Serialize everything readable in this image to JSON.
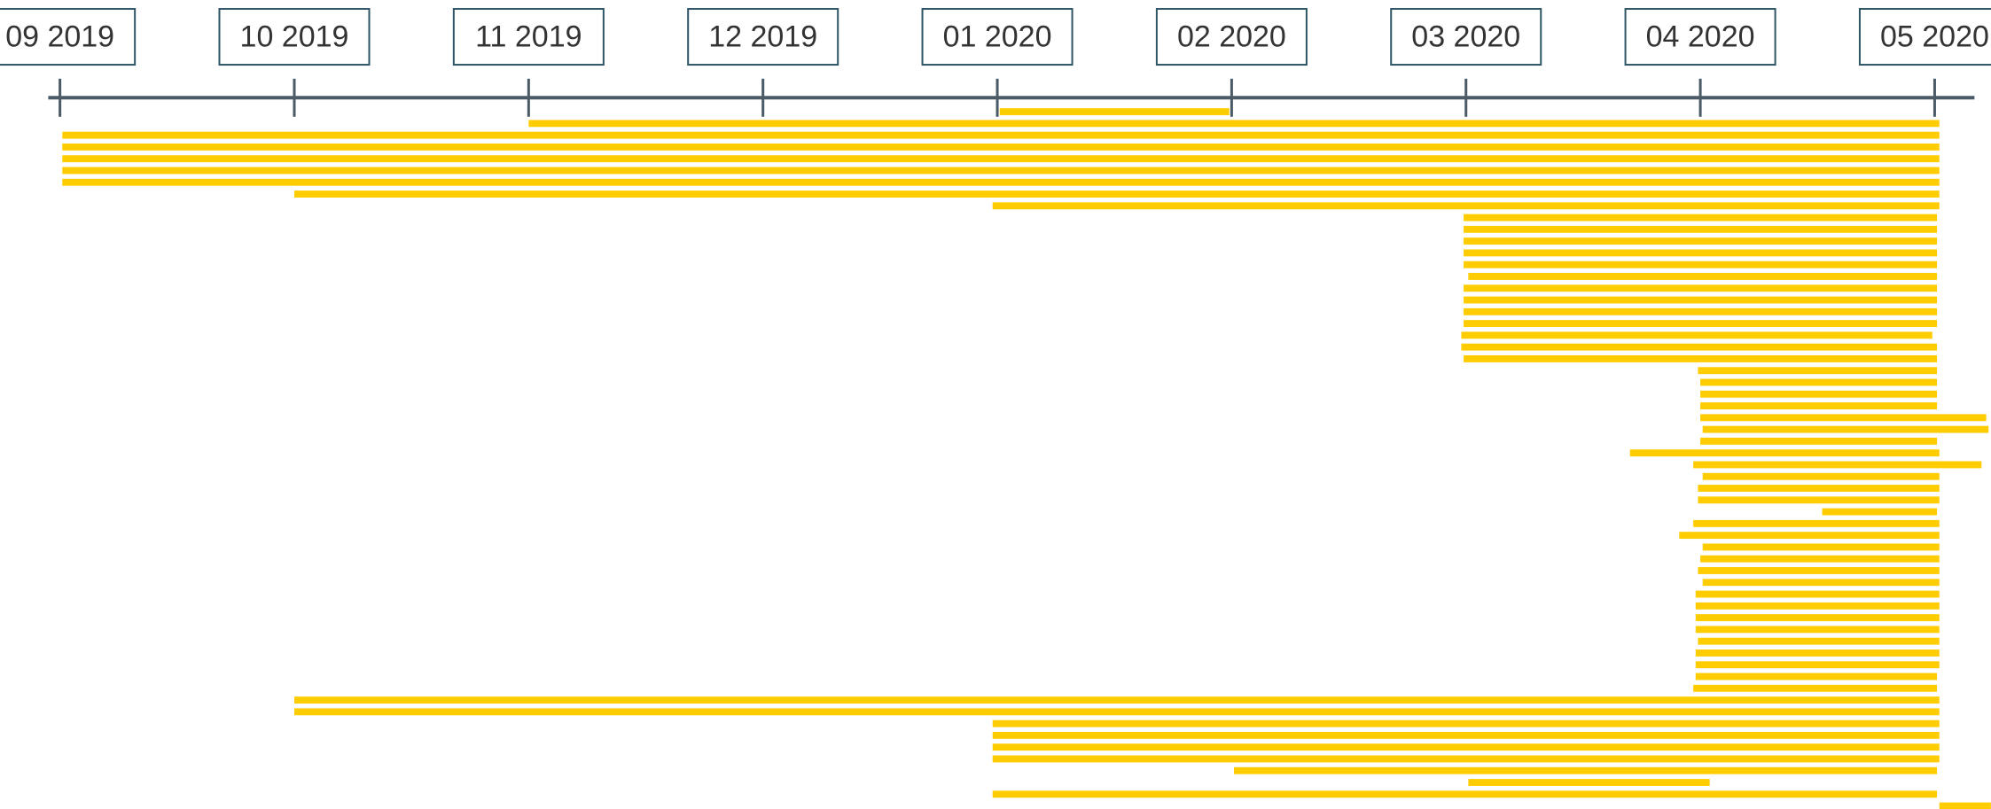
{
  "chart_data": {
    "type": "timeline",
    "color": "#ffcc00",
    "axis_color": "#4a5a66",
    "label_border": "#2e5566",
    "xlim": [
      -0.05,
      8.17
    ],
    "xticks": [
      {
        "value": 0,
        "label": "09 2019"
      },
      {
        "value": 1,
        "label": "10 2019"
      },
      {
        "value": 2,
        "label": "11 2019"
      },
      {
        "value": 3,
        "label": "12 2019"
      },
      {
        "value": 4,
        "label": "01 2020"
      },
      {
        "value": 5,
        "label": "02 2020"
      },
      {
        "value": 6,
        "label": "03 2020"
      },
      {
        "value": 7,
        "label": "04 2020"
      },
      {
        "value": 8,
        "label": "05 2020"
      }
    ],
    "starts": [
      4.01,
      2.0,
      0.01,
      0.01,
      0.01,
      0.01,
      0.01,
      1.0,
      3.98,
      5.99,
      5.99,
      5.99,
      5.99,
      5.99,
      6.01,
      5.99,
      5.99,
      5.99,
      5.99,
      5.98,
      5.98,
      5.99,
      6.99,
      7.0,
      7.0,
      7.0,
      7.0,
      7.01,
      7.0,
      6.7,
      6.97,
      7.01,
      6.99,
      6.99,
      7.52,
      6.97,
      6.91,
      7.01,
      7.0,
      6.99,
      7.01,
      6.98,
      6.98,
      6.98,
      6.98,
      6.99,
      6.98,
      6.98,
      6.98,
      6.97,
      1.0,
      1.0,
      3.98,
      3.98,
      3.98,
      3.98,
      5.01,
      6.01,
      3.98,
      8.02
    ],
    "ends": [
      4.99,
      8.02,
      8.02,
      8.02,
      8.02,
      8.02,
      8.02,
      8.02,
      8.02,
      8.01,
      8.01,
      8.01,
      8.01,
      8.01,
      8.01,
      8.01,
      8.01,
      8.01,
      8.01,
      7.99,
      8.01,
      8.01,
      8.01,
      8.01,
      8.01,
      8.01,
      8.22,
      8.23,
      8.01,
      8.02,
      8.2,
      8.02,
      8.02,
      8.02,
      8.01,
      8.02,
      8.02,
      8.02,
      8.02,
      8.02,
      8.02,
      8.02,
      8.02,
      8.02,
      8.02,
      8.02,
      8.02,
      8.02,
      8.01,
      8.01,
      8.02,
      8.02,
      8.02,
      8.02,
      8.02,
      8.02,
      8.01,
      7.04,
      8.01,
      8.24
    ]
  }
}
